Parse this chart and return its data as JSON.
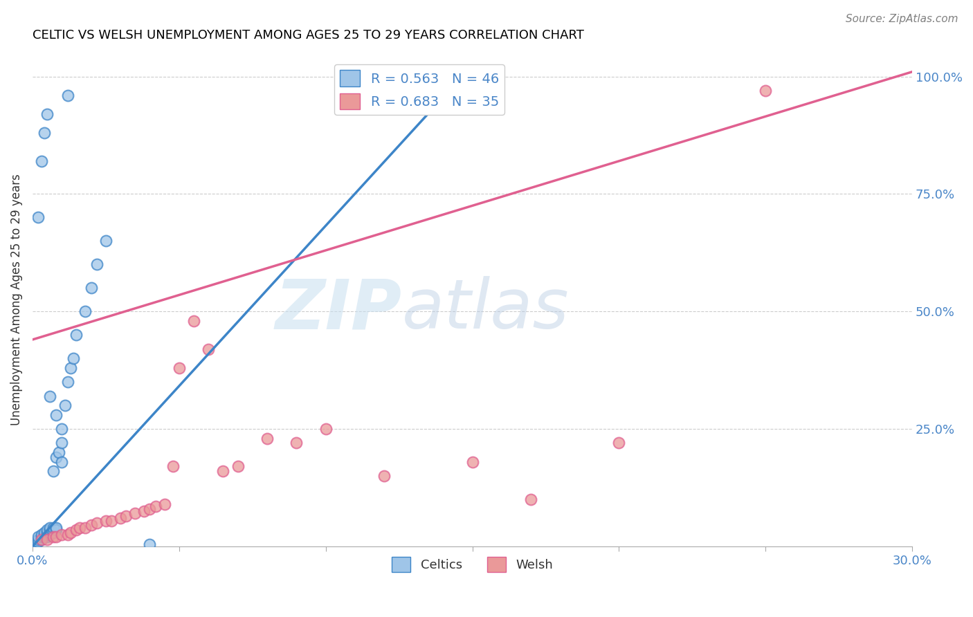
{
  "title": "CELTIC VS WELSH UNEMPLOYMENT AMONG AGES 25 TO 29 YEARS CORRELATION CHART",
  "source": "Source: ZipAtlas.com",
  "ylabel": "Unemployment Among Ages 25 to 29 years",
  "xlim": [
    0.0,
    0.3
  ],
  "ylim": [
    0.0,
    1.05
  ],
  "xticks": [
    0.0,
    0.05,
    0.1,
    0.15,
    0.2,
    0.25,
    0.3
  ],
  "xticklabels": [
    "0.0%",
    "",
    "",
    "",
    "",
    "",
    "30.0%"
  ],
  "yticks_right": [
    0.0,
    0.25,
    0.5,
    0.75,
    1.0
  ],
  "yticklabels_right": [
    "",
    "25.0%",
    "50.0%",
    "75.0%",
    "100.0%"
  ],
  "celtics_color": "#9fc5e8",
  "welsh_color": "#ea9999",
  "celtics_R": 0.563,
  "celtics_N": 46,
  "welsh_R": 0.683,
  "welsh_N": 35,
  "celtics_line_color": "#3d85c8",
  "welsh_line_color": "#e06090",
  "watermark": "ZIPatlas",
  "celtics_line": {
    "x0": 0.0,
    "y0": 0.0,
    "x1": 0.148,
    "y1": 1.01
  },
  "welsh_line": {
    "x0": 0.0,
    "y0": 0.44,
    "x1": 0.3,
    "y1": 1.01
  },
  "celtics_x": [
    0.001,
    0.001,
    0.002,
    0.002,
    0.002,
    0.003,
    0.003,
    0.003,
    0.004,
    0.004,
    0.004,
    0.005,
    0.005,
    0.005,
    0.005,
    0.006,
    0.006,
    0.006,
    0.006,
    0.007,
    0.007,
    0.008,
    0.008,
    0.008,
    0.009,
    0.01,
    0.01,
    0.011,
    0.012,
    0.013,
    0.014,
    0.015,
    0.018,
    0.02,
    0.022,
    0.025,
    0.007,
    0.01,
    0.008,
    0.006,
    0.003,
    0.004,
    0.005,
    0.012,
    0.04,
    0.002
  ],
  "celtics_y": [
    0.005,
    0.01,
    0.01,
    0.015,
    0.02,
    0.015,
    0.02,
    0.025,
    0.02,
    0.025,
    0.03,
    0.02,
    0.025,
    0.03,
    0.035,
    0.025,
    0.03,
    0.035,
    0.04,
    0.03,
    0.04,
    0.035,
    0.04,
    0.19,
    0.2,
    0.22,
    0.25,
    0.3,
    0.35,
    0.38,
    0.4,
    0.45,
    0.5,
    0.55,
    0.6,
    0.65,
    0.16,
    0.18,
    0.28,
    0.32,
    0.82,
    0.88,
    0.92,
    0.96,
    0.005,
    0.7
  ],
  "welsh_x": [
    0.003,
    0.005,
    0.007,
    0.008,
    0.01,
    0.012,
    0.013,
    0.015,
    0.016,
    0.018,
    0.02,
    0.022,
    0.025,
    0.027,
    0.03,
    0.032,
    0.035,
    0.038,
    0.04,
    0.042,
    0.045,
    0.05,
    0.055,
    0.065,
    0.07,
    0.08,
    0.1,
    0.12,
    0.15,
    0.2,
    0.17,
    0.06,
    0.048,
    0.09,
    0.25
  ],
  "welsh_y": [
    0.015,
    0.015,
    0.02,
    0.02,
    0.025,
    0.025,
    0.03,
    0.035,
    0.04,
    0.04,
    0.045,
    0.05,
    0.055,
    0.055,
    0.06,
    0.065,
    0.07,
    0.075,
    0.08,
    0.085,
    0.09,
    0.38,
    0.48,
    0.16,
    0.17,
    0.23,
    0.25,
    0.15,
    0.18,
    0.22,
    0.1,
    0.42,
    0.17,
    0.22,
    0.97
  ]
}
